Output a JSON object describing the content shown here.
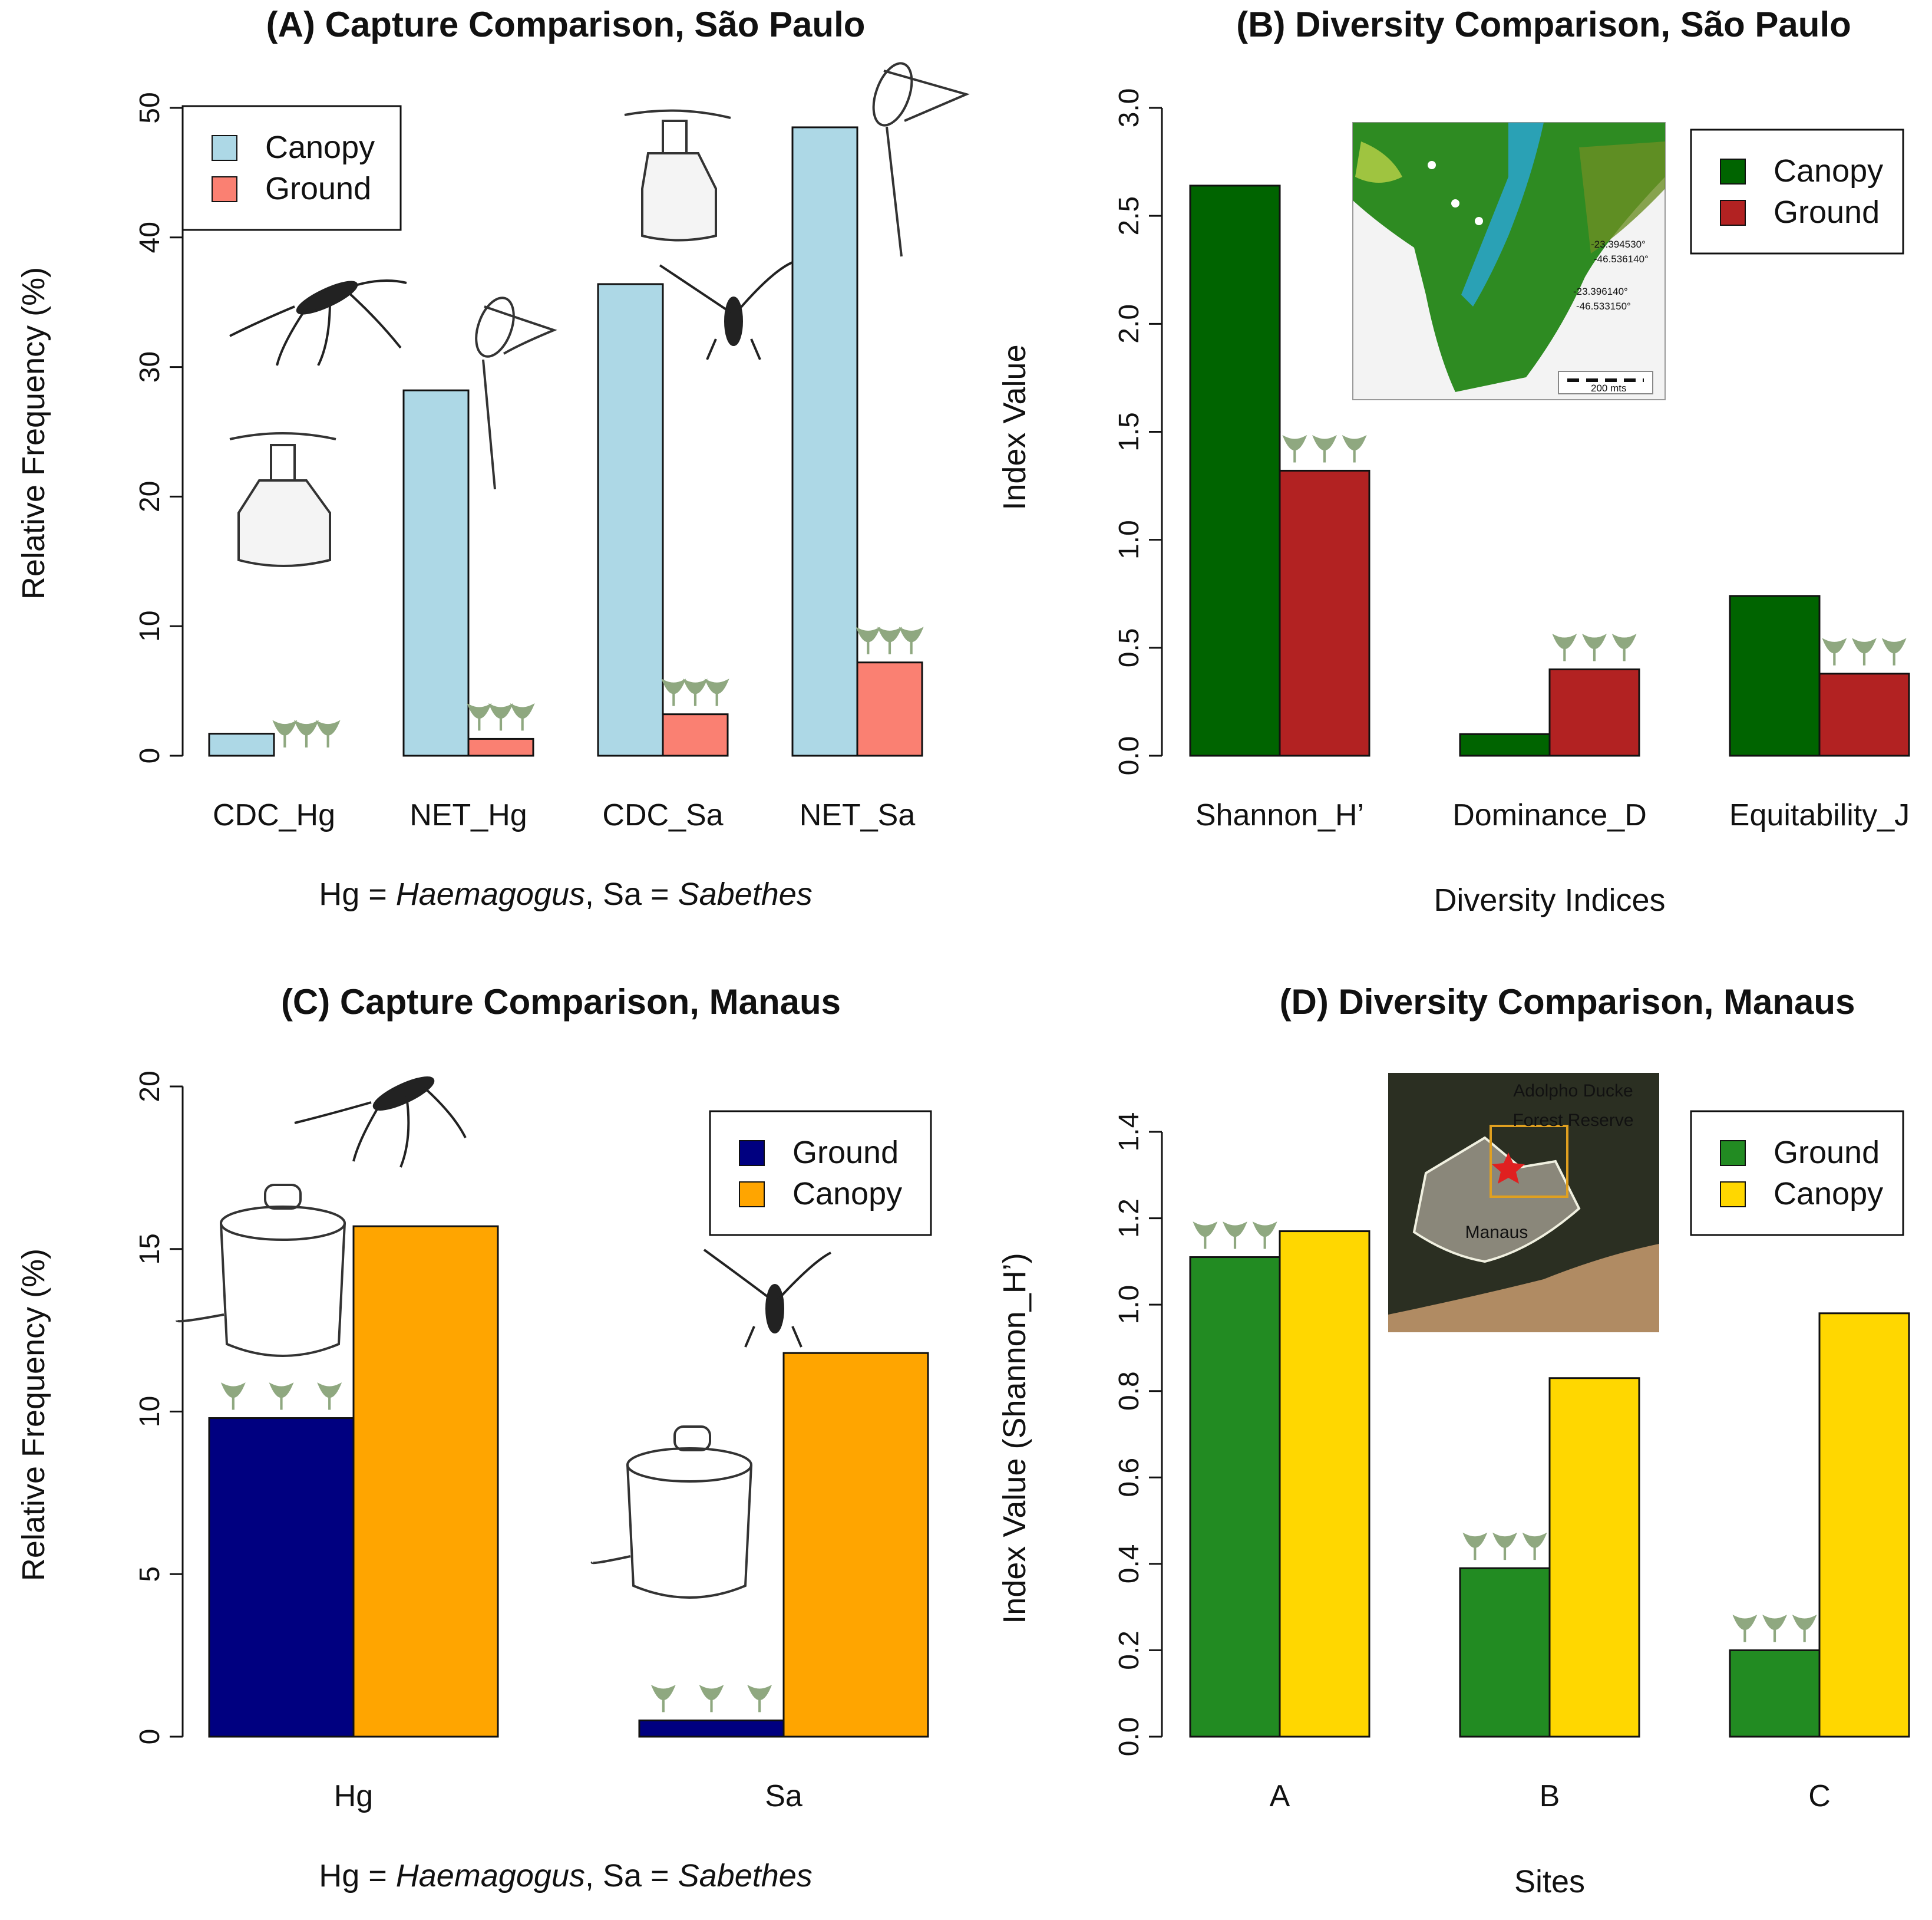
{
  "figure": {
    "note_prefix": "Hg = ",
    "note_genus1": "Haemagogus",
    "note_mid": ", Sa = ",
    "note_genus2": "Sabethes"
  },
  "chart_data": [
    {
      "id": "A",
      "type": "bar",
      "title": "(A) Capture Comparison, São Paulo",
      "categories": [
        "CDC_Hg",
        "NET_Hg",
        "CDC_Sa",
        "NET_Sa"
      ],
      "series": [
        {
          "name": "Canopy",
          "color": "#ADD8E6",
          "values": [
            1.7,
            28.2,
            36.4,
            48.5
          ]
        },
        {
          "name": "Ground",
          "color": "#FA8072",
          "values": [
            0.0,
            1.3,
            3.2,
            7.2
          ]
        }
      ],
      "ylabel": "Relative Frequency (%)",
      "xlabel": "",
      "ylim": [
        0,
        50
      ],
      "yticks": [
        0,
        10,
        20,
        30,
        40,
        50
      ],
      "legend": "top-left",
      "inset": "",
      "inset_labels": []
    },
    {
      "id": "B",
      "type": "bar",
      "title": "(B) Diversity Comparison, São Paulo",
      "categories": [
        "Shannon_H’",
        "Dominance_D",
        "Equitability_J"
      ],
      "series": [
        {
          "name": "Canopy",
          "color": "#006400",
          "values": [
            2.64,
            0.1,
            0.74
          ]
        },
        {
          "name": "Ground",
          "color": "#B22222",
          "values": [
            1.32,
            0.4,
            0.38
          ]
        }
      ],
      "ylabel": "Index Value",
      "xlabel": "Diversity Indices",
      "ylim": [
        0,
        3.0
      ],
      "yticks": [
        "0.0",
        "0.5",
        "1.0",
        "1.5",
        "2.0",
        "2.5",
        "3.0"
      ],
      "legend": "top-right",
      "inset": "map",
      "inset_labels": [
        "-23.394530°",
        "-46.536140°",
        "-23.396140°",
        "-46.533150°",
        "200 mts"
      ]
    },
    {
      "id": "C",
      "type": "bar",
      "title": "(C) Capture Comparison, Manaus",
      "categories": [
        "Hg",
        "Sa"
      ],
      "series": [
        {
          "name": "Ground",
          "color": "#000080",
          "values": [
            9.8,
            0.5
          ]
        },
        {
          "name": "Canopy",
          "color": "#FFA500",
          "values": [
            15.7,
            11.8
          ]
        }
      ],
      "ylabel": "Relative Frequency (%)",
      "xlabel": "",
      "ylim": [
        0,
        20
      ],
      "yticks": [
        0,
        5,
        10,
        15,
        20
      ],
      "legend": "top-right",
      "inset": "",
      "inset_labels": []
    },
    {
      "id": "D",
      "type": "bar",
      "title": "(D) Diversity Comparison, Manaus",
      "categories": [
        "A",
        "B",
        "C"
      ],
      "series": [
        {
          "name": "Ground",
          "color": "#228B22",
          "values": [
            1.11,
            0.39,
            0.2
          ]
        },
        {
          "name": "Canopy",
          "color": "#FFD700",
          "values": [
            1.17,
            0.83,
            0.98
          ]
        }
      ],
      "ylabel": "Index Value (Shannon_H’)",
      "xlabel": "Sites",
      "ylim": [
        0,
        1.4
      ],
      "yticks": [
        "0.0",
        "0.2",
        "0.4",
        "0.6",
        "0.8",
        "1.0",
        "1.2",
        "1.4"
      ],
      "legend": "top-right",
      "inset": "satellite",
      "inset_labels": [
        "Adolpho Ducke",
        "Forest Reserve",
        "Manaus"
      ]
    }
  ]
}
